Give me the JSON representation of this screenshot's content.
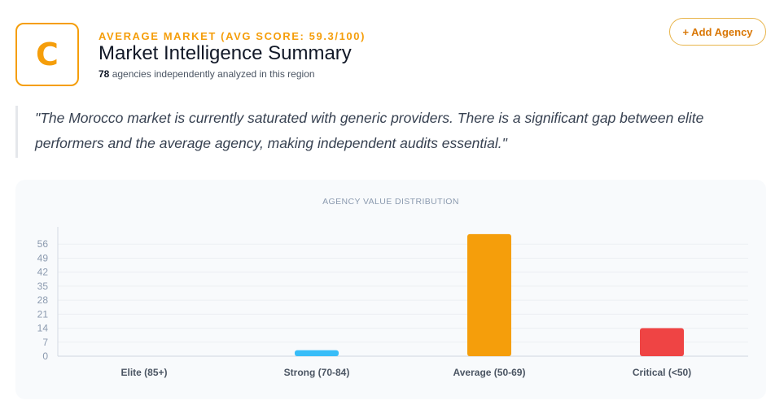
{
  "header": {
    "grade": "C",
    "kicker": "AVERAGE MARKET (AVG SCORE: 59.3/100)",
    "title": "Market Intelligence Summary",
    "agency_count": "78",
    "subtitle_rest": " agencies independently analyzed in this region",
    "add_button_label": "+ Add Agency"
  },
  "quote": "\"The Morocco market is currently saturated with generic providers. There is a significant gap between elite performers and the average agency, making independent audits essential.\"",
  "colors": {
    "accent": "#f59e0b",
    "elite": "#22c55e",
    "strong": "#38bdf8",
    "average": "#f59e0b",
    "critical": "#ef4444"
  },
  "chart_data": {
    "type": "bar",
    "title": "AGENCY VALUE DISTRIBUTION",
    "categories": [
      "Elite (85+)",
      "Strong (70-84)",
      "Average (50-69)",
      "Critical (<50)"
    ],
    "values": [
      0,
      3,
      61,
      14
    ],
    "bar_colors": [
      "#22c55e",
      "#38bdf8",
      "#f59e0b",
      "#ef4444"
    ],
    "yticks": [
      0,
      7,
      14,
      21,
      28,
      35,
      42,
      49,
      56
    ],
    "ylim": [
      0,
      63
    ],
    "xlabel": "",
    "ylabel": "",
    "grid": true
  }
}
